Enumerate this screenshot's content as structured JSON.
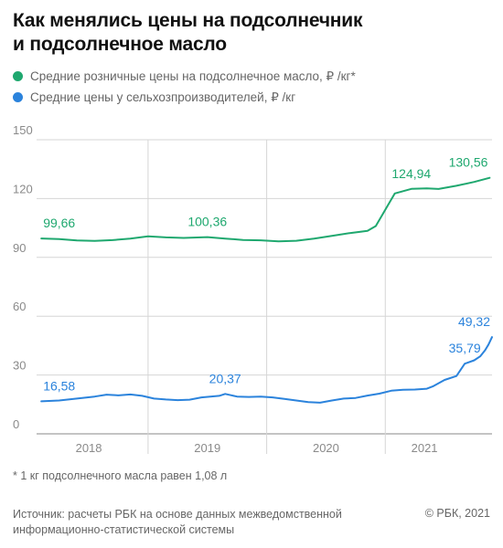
{
  "header": {
    "title_line1": "Как менялись цены на подсолнечник",
    "title_line2": "и подсолнечное масло"
  },
  "legend": [
    {
      "label": "Средние розничные цены на подсолнечное масло, ₽ /кг*",
      "color": "#1fa86f"
    },
    {
      "label": "Средние цены у сельхозпроизводителей, ₽ /кг",
      "color": "#2b83dc"
    }
  ],
  "chart_data": {
    "type": "line",
    "title": "Как менялись цены на подсолнечник и подсолнечное масло",
    "xlabel": "",
    "ylabel": "",
    "ylim": [
      0,
      150
    ],
    "yticks": [
      0,
      30,
      60,
      90,
      120,
      150
    ],
    "xlim": [
      2017.56,
      2021.4
    ],
    "year_labels": [
      {
        "label": "2018",
        "center": 2018.0
      },
      {
        "label": "2019",
        "center": 2019.0
      },
      {
        "label": "2020",
        "center": 2020.0
      },
      {
        "label": "2021",
        "center": 2020.83
      }
    ],
    "year_boundaries": [
      2018.5,
      2019.5,
      2020.5
    ],
    "grid": true,
    "legend_position": "top-left",
    "series": [
      {
        "name": "Средние розничные цены на подсолнечное масло, ₽ /кг*",
        "color": "#1fa86f",
        "points": [
          [
            2017.6,
            99.66
          ],
          [
            2017.75,
            99.3
          ],
          [
            2017.9,
            98.6
          ],
          [
            2018.05,
            98.4
          ],
          [
            2018.2,
            98.8
          ],
          [
            2018.35,
            99.6
          ],
          [
            2018.5,
            100.7
          ],
          [
            2018.65,
            100.2
          ],
          [
            2018.8,
            99.9
          ],
          [
            2019.0,
            100.36
          ],
          [
            2019.15,
            99.6
          ],
          [
            2019.3,
            98.9
          ],
          [
            2019.45,
            98.7
          ],
          [
            2019.6,
            98.2
          ],
          [
            2019.75,
            98.5
          ],
          [
            2019.9,
            99.6
          ],
          [
            2020.05,
            101.0
          ],
          [
            2020.2,
            102.4
          ],
          [
            2020.35,
            103.5
          ],
          [
            2020.42,
            106.0
          ],
          [
            2020.58,
            122.6
          ],
          [
            2020.72,
            124.94
          ],
          [
            2020.85,
            125.2
          ],
          [
            2020.95,
            124.9
          ],
          [
            2021.1,
            126.5
          ],
          [
            2021.25,
            128.5
          ],
          [
            2021.38,
            130.56
          ]
        ],
        "labels": [
          {
            "text": "99,66",
            "x": 2017.6,
            "y": 99.66
          },
          {
            "text": "100,36",
            "x": 2019.0,
            "y": 100.36
          },
          {
            "text": "124,94",
            "x": 2020.72,
            "y": 124.94
          },
          {
            "text": "130,56",
            "x": 2021.38,
            "y": 130.56
          }
        ]
      },
      {
        "name": "Средние цены у сельхозпроизводителей, ₽ /кг",
        "color": "#2b83dc",
        "points": [
          [
            2017.6,
            16.58
          ],
          [
            2017.75,
            17.0
          ],
          [
            2017.9,
            18.0
          ],
          [
            2018.05,
            19.0
          ],
          [
            2018.15,
            20.0
          ],
          [
            2018.25,
            19.6
          ],
          [
            2018.35,
            20.1
          ],
          [
            2018.45,
            19.4
          ],
          [
            2018.55,
            18.0
          ],
          [
            2018.65,
            17.5
          ],
          [
            2018.75,
            17.2
          ],
          [
            2018.85,
            17.4
          ],
          [
            2018.95,
            18.6
          ],
          [
            2019.1,
            19.4
          ],
          [
            2019.15,
            20.37
          ],
          [
            2019.25,
            19.0
          ],
          [
            2019.35,
            18.8
          ],
          [
            2019.45,
            19.0
          ],
          [
            2019.55,
            18.6
          ],
          [
            2019.65,
            17.8
          ],
          [
            2019.75,
            17.0
          ],
          [
            2019.85,
            16.2
          ],
          [
            2019.95,
            15.9
          ],
          [
            2020.05,
            17.0
          ],
          [
            2020.15,
            18.0
          ],
          [
            2020.25,
            18.3
          ],
          [
            2020.35,
            19.5
          ],
          [
            2020.45,
            20.5
          ],
          [
            2020.55,
            22.0
          ],
          [
            2020.65,
            22.5
          ],
          [
            2020.75,
            22.6
          ],
          [
            2020.85,
            23.0
          ],
          [
            2020.9,
            24.2
          ],
          [
            2021.0,
            27.5
          ],
          [
            2021.1,
            29.5
          ],
          [
            2021.17,
            35.79
          ],
          [
            2021.25,
            37.5
          ],
          [
            2021.3,
            39.5
          ],
          [
            2021.34,
            42.5
          ],
          [
            2021.37,
            45.5
          ],
          [
            2021.4,
            49.32
          ]
        ],
        "labels": [
          {
            "text": "16,58",
            "x": 2017.6,
            "y": 16.58
          },
          {
            "text": "20,37",
            "x": 2019.15,
            "y": 20.37
          },
          {
            "text": "35,79",
            "x": 2021.17,
            "y": 35.79
          },
          {
            "text": "49,32",
            "x": 2021.4,
            "y": 49.32
          }
        ]
      }
    ]
  },
  "footer": {
    "footnote": "* 1 кг подсолнечного масла равен 1,08 л",
    "source_line1": "Источник: расчеты РБК на основе данных межведомственной",
    "source_line2": "информационно-статистической системы",
    "copyright": "© РБК, 2021"
  }
}
